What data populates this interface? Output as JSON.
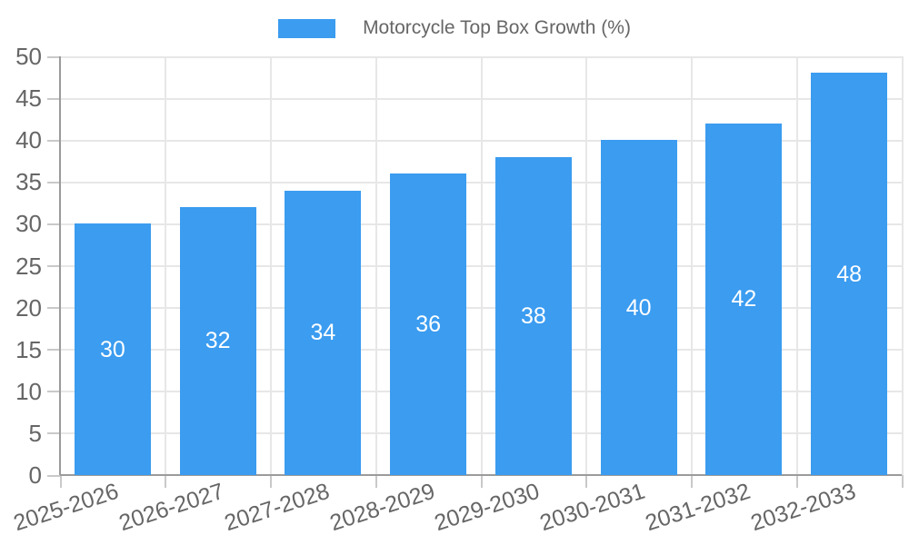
{
  "chart_data": {
    "type": "bar",
    "title": "",
    "legend_label": "Motorcycle Top Box Growth (%)",
    "legend_position": "top",
    "categories": [
      "2025-2026",
      "2026-2027",
      "2027-2028",
      "2028-2029",
      "2029-2030",
      "2030-2031",
      "2031-2032",
      "2032-2033"
    ],
    "series": [
      {
        "name": "Motorcycle Top Box Growth (%)",
        "values": [
          30,
          32,
          34,
          36,
          38,
          40,
          42,
          48
        ]
      }
    ],
    "show_values": true,
    "xlabel": "",
    "ylabel": "",
    "ylim": [
      0,
      50
    ],
    "ytick_step": 5,
    "yticks": [
      0,
      5,
      10,
      15,
      20,
      25,
      30,
      35,
      40,
      45,
      50
    ],
    "grid": true,
    "x_label_rotation_deg": -18,
    "colors": {
      "bar": "#3B9CF0",
      "value_label": "#FFFFFF",
      "axis_text": "#666666",
      "legend_text": "#666666",
      "gridline": "#E7E7E7",
      "tick": "#C9C9C9",
      "axis_line": "#9B9B9B",
      "background": "#FFFFFF"
    }
  }
}
